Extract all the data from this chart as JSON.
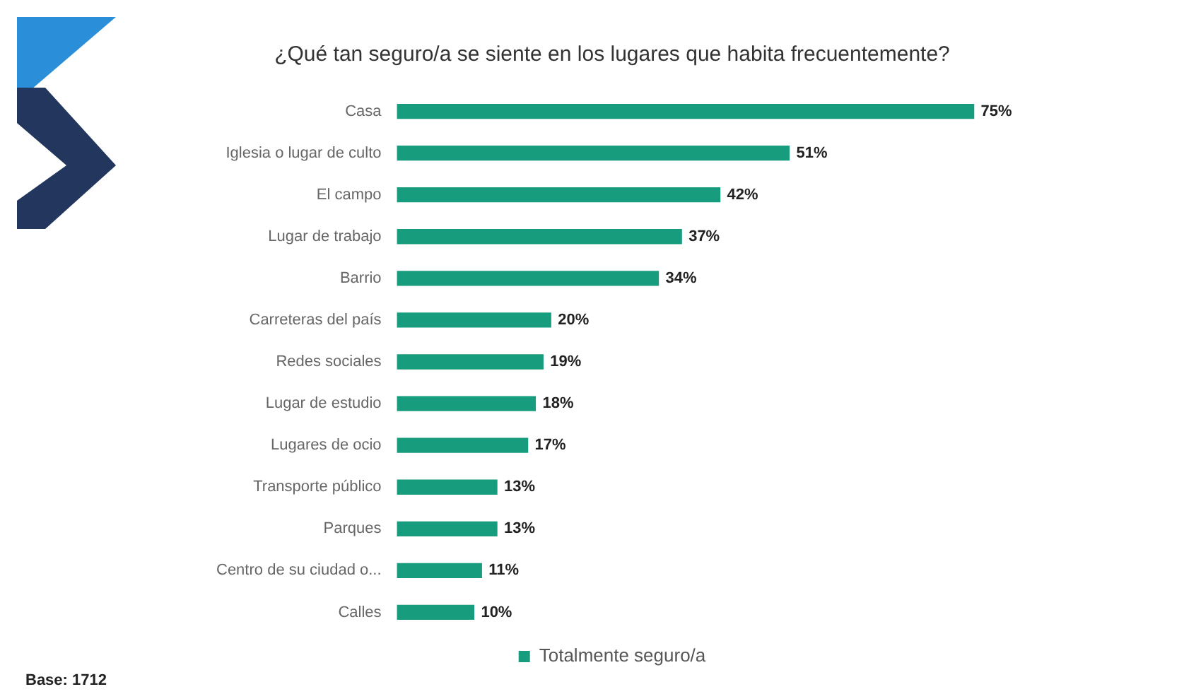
{
  "chart_data": {
    "type": "bar",
    "orientation": "horizontal",
    "title": "¿Qué tan seguro/a se siente en los lugares que habita frecuentemente?",
    "categories": [
      "Casa",
      "Iglesia o lugar de culto",
      "El campo",
      "Lugar de trabajo",
      "Barrio",
      "Carreteras del país",
      "Redes sociales",
      "Lugar de estudio",
      "Lugares de ocio",
      "Transporte público",
      "Parques",
      "Centro de su ciudad o...",
      "Calles"
    ],
    "series": [
      {
        "name": "Totalmente seguro/a",
        "color": "#179c7d",
        "values": [
          75,
          51,
          42,
          37,
          34,
          20,
          19,
          18,
          17,
          13,
          13,
          11,
          10
        ],
        "value_labels": [
          "75%",
          "51%",
          "42%",
          "37%",
          "34%",
          "20%",
          "19%",
          "18%",
          "17%",
          "13%",
          "13%",
          "11%",
          "10%"
        ]
      }
    ],
    "legend": "bottom",
    "annotations": [
      "Base: 1712"
    ]
  }
}
